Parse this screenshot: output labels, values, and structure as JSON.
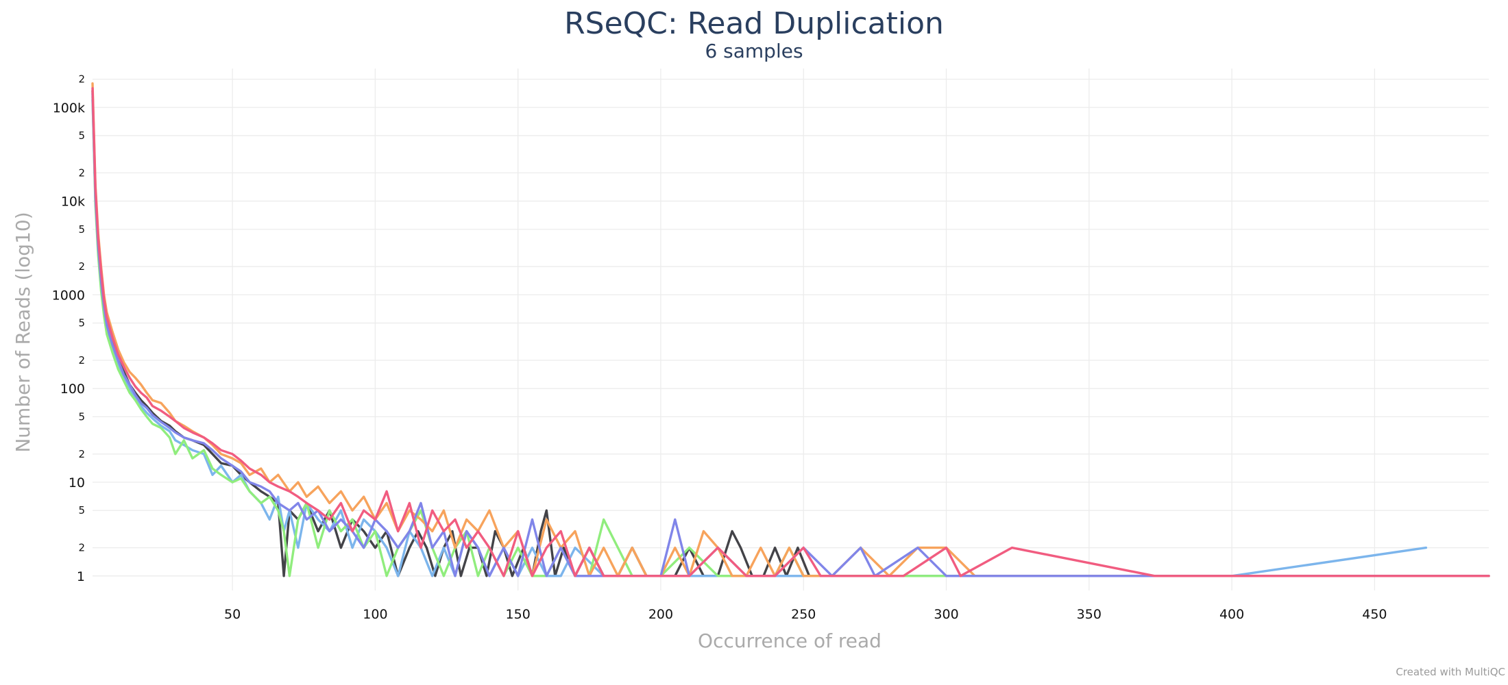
{
  "chart_data": {
    "type": "line",
    "title": "RSeQC: Read Duplication",
    "subtitle": "6 samples",
    "xlabel": "Occurrence of read",
    "ylabel": "Number of Reads (log10)",
    "credit": "Created with MultiQC",
    "y_scale": "log",
    "xlim": [
      1,
      490
    ],
    "ylim": [
      0.7,
      260000
    ],
    "grid": true,
    "x_ticks": [
      50,
      100,
      150,
      200,
      250,
      300,
      350,
      400,
      450
    ],
    "y_major_ticks": [
      {
        "value": 1,
        "label": "1"
      },
      {
        "value": 10,
        "label": "10"
      },
      {
        "value": 100,
        "label": "100"
      },
      {
        "value": 1000,
        "label": "1000"
      },
      {
        "value": 10000,
        "label": "10k"
      },
      {
        "value": 100000,
        "label": "100k"
      }
    ],
    "y_minor_ticks": [
      {
        "value": 2,
        "label": "2"
      },
      {
        "value": 5,
        "label": "5"
      },
      {
        "value": 20,
        "label": "2"
      },
      {
        "value": 50,
        "label": "5"
      },
      {
        "value": 200,
        "label": "2"
      },
      {
        "value": 500,
        "label": "5"
      },
      {
        "value": 2000,
        "label": "2"
      },
      {
        "value": 5000,
        "label": "5"
      },
      {
        "value": 20000,
        "label": "2"
      },
      {
        "value": 50000,
        "label": "5"
      },
      {
        "value": 200000,
        "label": "2"
      }
    ],
    "series": [
      {
        "color": "#434348",
        "x": [
          1,
          2,
          3,
          4,
          5,
          6,
          8,
          10,
          12,
          14,
          16,
          18,
          20,
          22,
          25,
          28,
          30,
          33,
          36,
          40,
          43,
          46,
          50,
          53,
          56,
          60,
          63,
          66,
          68,
          70,
          73,
          76,
          80,
          84,
          88,
          92,
          96,
          100,
          104,
          108,
          112,
          115,
          118,
          121,
          124,
          127,
          130,
          133,
          136,
          139,
          142,
          145,
          148,
          152,
          155,
          158,
          160,
          163,
          166,
          170,
          175,
          180,
          185,
          190,
          195,
          200,
          205,
          210,
          215,
          220,
          225,
          228,
          232,
          236,
          240,
          244,
          248,
          252,
          256,
          260,
          280,
          320,
          400,
          490
        ],
        "y": [
          150000,
          12000,
          3500,
          1500,
          800,
          500,
          300,
          200,
          150,
          110,
          90,
          75,
          65,
          55,
          45,
          40,
          35,
          30,
          28,
          25,
          20,
          16,
          15,
          12,
          10,
          8,
          7,
          6,
          1,
          5,
          4,
          6,
          3,
          5,
          2,
          4,
          3,
          2,
          3,
          1,
          2,
          3,
          2,
          1,
          2,
          3,
          1,
          2,
          2,
          1,
          3,
          2,
          1,
          2,
          1,
          3,
          5,
          1,
          2,
          1,
          2,
          1,
          1,
          2,
          1,
          1,
          1,
          2,
          1,
          1,
          3,
          2,
          1,
          1,
          2,
          1,
          2,
          1,
          1,
          1,
          1,
          1,
          1,
          1
        ]
      },
      {
        "color": "#7cb5ec",
        "x": [
          1,
          2,
          3,
          4,
          5,
          6,
          8,
          10,
          12,
          14,
          16,
          18,
          20,
          22,
          25,
          28,
          30,
          33,
          36,
          40,
          43,
          46,
          50,
          53,
          56,
          60,
          63,
          66,
          68,
          70,
          73,
          76,
          80,
          84,
          88,
          92,
          96,
          100,
          104,
          108,
          112,
          116,
          120,
          124,
          128,
          132,
          136,
          140,
          145,
          150,
          155,
          160,
          165,
          170,
          180,
          190,
          200,
          210,
          220,
          230,
          240,
          250,
          260,
          270,
          280,
          300,
          350,
          400,
          468
        ],
        "y": [
          120000,
          10000,
          2800,
          1200,
          650,
          420,
          260,
          180,
          130,
          100,
          80,
          65,
          55,
          48,
          40,
          35,
          28,
          25,
          22,
          20,
          12,
          15,
          10,
          12,
          8,
          6,
          4,
          7,
          3,
          5,
          2,
          6,
          4,
          3,
          5,
          2,
          4,
          3,
          2,
          1,
          3,
          2,
          1,
          2,
          1,
          3,
          2,
          1,
          2,
          1,
          2,
          1,
          1,
          2,
          1,
          1,
          1,
          1,
          1,
          1,
          1,
          1,
          1,
          1,
          1,
          1,
          1,
          1,
          2
        ]
      },
      {
        "color": "#90ed7d",
        "x": [
          1,
          2,
          3,
          4,
          5,
          6,
          8,
          10,
          12,
          14,
          16,
          18,
          20,
          22,
          25,
          28,
          30,
          33,
          36,
          40,
          43,
          46,
          50,
          53,
          56,
          60,
          63,
          66,
          68,
          70,
          73,
          76,
          80,
          84,
          88,
          92,
          96,
          100,
          104,
          108,
          112,
          116,
          120,
          124,
          128,
          132,
          136,
          140,
          145,
          150,
          155,
          160,
          165,
          170,
          175,
          180,
          185,
          190,
          200,
          210,
          220,
          230,
          240,
          245,
          250,
          260,
          300,
          400,
          490
        ],
        "y": [
          130000,
          9000,
          2600,
          1100,
          600,
          380,
          240,
          160,
          120,
          90,
          75,
          60,
          50,
          42,
          38,
          30,
          20,
          28,
          18,
          22,
          14,
          12,
          10,
          11,
          8,
          6,
          7,
          5,
          3,
          1,
          4,
          6,
          2,
          5,
          3,
          4,
          2,
          3,
          1,
          2,
          3,
          5,
          2,
          1,
          2,
          3,
          1,
          2,
          1,
          2,
          1,
          1,
          2,
          1,
          1,
          4,
          2,
          1,
          1,
          2,
          1,
          1,
          1,
          2,
          1,
          1,
          1,
          1,
          1
        ]
      },
      {
        "color": "#f7a35c",
        "x": [
          1,
          2,
          3,
          4,
          5,
          6,
          8,
          10,
          12,
          14,
          16,
          18,
          20,
          22,
          25,
          28,
          30,
          33,
          36,
          40,
          43,
          46,
          50,
          53,
          56,
          60,
          63,
          66,
          70,
          73,
          76,
          80,
          84,
          88,
          92,
          96,
          100,
          104,
          108,
          112,
          116,
          120,
          124,
          128,
          132,
          136,
          140,
          145,
          150,
          155,
          160,
          165,
          170,
          175,
          180,
          185,
          190,
          195,
          200,
          205,
          210,
          215,
          220,
          225,
          230,
          235,
          240,
          245,
          250,
          260,
          270,
          280,
          290,
          300,
          310,
          320,
          360,
          400,
          490
        ],
        "y": [
          180000,
          15000,
          4500,
          2000,
          1000,
          650,
          400,
          260,
          190,
          150,
          130,
          110,
          90,
          75,
          70,
          55,
          45,
          40,
          35,
          30,
          25,
          20,
          18,
          16,
          12,
          14,
          10,
          12,
          8,
          10,
          7,
          9,
          6,
          8,
          5,
          7,
          4,
          6,
          3,
          5,
          4,
          3,
          5,
          2,
          4,
          3,
          5,
          2,
          3,
          1,
          4,
          2,
          3,
          1,
          2,
          1,
          2,
          1,
          1,
          2,
          1,
          3,
          2,
          1,
          1,
          2,
          1,
          2,
          1,
          1,
          2,
          1,
          2,
          2,
          1,
          1,
          1,
          1,
          1
        ]
      },
      {
        "color": "#8085e9",
        "x": [
          1,
          2,
          3,
          4,
          5,
          6,
          8,
          10,
          12,
          14,
          16,
          18,
          20,
          22,
          25,
          28,
          30,
          33,
          36,
          40,
          43,
          46,
          50,
          53,
          56,
          60,
          63,
          66,
          70,
          73,
          76,
          80,
          84,
          88,
          92,
          96,
          100,
          104,
          108,
          112,
          116,
          120,
          124,
          128,
          132,
          136,
          140,
          145,
          150,
          155,
          160,
          165,
          170,
          175,
          180,
          190,
          200,
          205,
          210,
          220,
          230,
          240,
          250,
          260,
          270,
          275,
          290,
          300,
          350,
          400,
          490
        ],
        "y": [
          140000,
          11000,
          3200,
          1400,
          750,
          470,
          290,
          200,
          140,
          110,
          85,
          70,
          62,
          52,
          44,
          38,
          34,
          30,
          28,
          26,
          22,
          18,
          15,
          13,
          10,
          9,
          8,
          6,
          5,
          6,
          4,
          5,
          3,
          4,
          3,
          2,
          4,
          3,
          2,
          3,
          6,
          2,
          3,
          1,
          3,
          2,
          1,
          2,
          1,
          4,
          1,
          2,
          1,
          1,
          1,
          1,
          1,
          4,
          1,
          2,
          1,
          1,
          2,
          1,
          2,
          1,
          2,
          1,
          1,
          1,
          1
        ]
      },
      {
        "color": "#f15c80",
        "x": [
          1,
          2,
          3,
          4,
          5,
          6,
          8,
          10,
          12,
          14,
          16,
          18,
          20,
          22,
          25,
          28,
          30,
          33,
          36,
          40,
          43,
          46,
          50,
          53,
          56,
          60,
          63,
          66,
          70,
          73,
          76,
          80,
          84,
          88,
          92,
          96,
          100,
          104,
          108,
          112,
          116,
          120,
          124,
          128,
          132,
          136,
          140,
          145,
          150,
          155,
          160,
          165,
          170,
          175,
          180,
          190,
          200,
          210,
          220,
          230,
          240,
          250,
          256,
          270,
          285,
          300,
          305,
          323,
          373,
          400,
          490
        ],
        "y": [
          160000,
          14000,
          4000,
          1800,
          900,
          580,
          350,
          230,
          170,
          130,
          105,
          90,
          80,
          65,
          58,
          50,
          45,
          38,
          34,
          30,
          26,
          22,
          20,
          17,
          14,
          12,
          10,
          9,
          8,
          7,
          6,
          5,
          4,
          6,
          3,
          5,
          4,
          8,
          3,
          6,
          2,
          5,
          3,
          4,
          2,
          3,
          2,
          1,
          3,
          1,
          2,
          3,
          1,
          2,
          1,
          1,
          1,
          1,
          2,
          1,
          1,
          2,
          1,
          1,
          1,
          2,
          1,
          2,
          1,
          1,
          1
        ]
      }
    ]
  }
}
